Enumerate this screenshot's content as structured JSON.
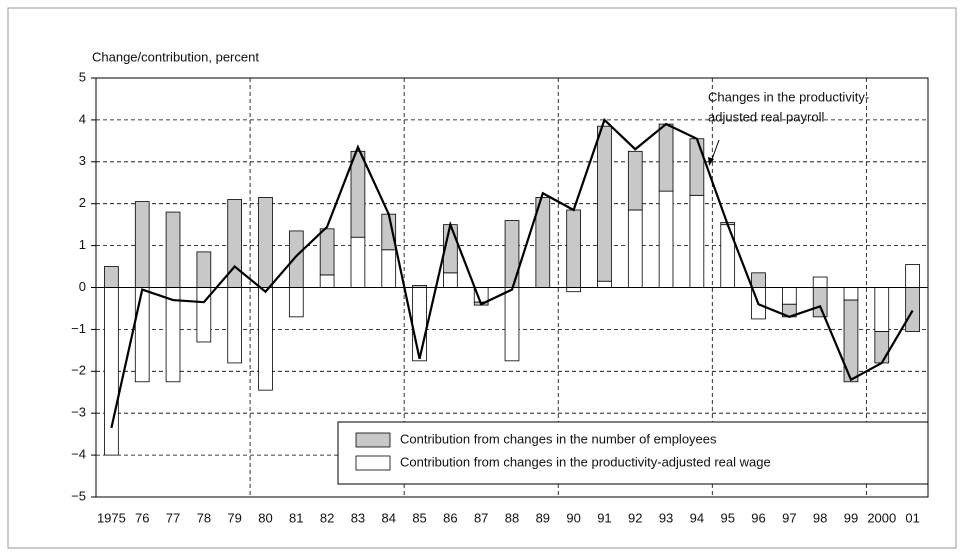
{
  "chart_data": {
    "type": "bar",
    "y_axis_label": "Change/contribution, percent",
    "categories": [
      "1975",
      "76",
      "77",
      "78",
      "79",
      "80",
      "81",
      "82",
      "83",
      "84",
      "85",
      "86",
      "87",
      "88",
      "89",
      "90",
      "91",
      "92",
      "93",
      "94",
      "95",
      "96",
      "97",
      "98",
      "99",
      "2000",
      "01"
    ],
    "series": [
      {
        "name": "Contribution from changes in the productivity-adjusted real wage",
        "color": "#ffffff",
        "values": [
          -4.0,
          -2.25,
          -2.25,
          -1.3,
          -1.8,
          -2.45,
          -0.7,
          0.3,
          1.2,
          0.9,
          -1.75,
          0.35,
          -0.35,
          -1.75,
          0.0,
          -0.1,
          0.15,
          1.85,
          2.3,
          2.2,
          1.5,
          -0.75,
          -0.4,
          0.25,
          -0.3,
          -1.05,
          0.55
        ]
      },
      {
        "name": "Contribution from changes in the number of employees",
        "color": "#c8c8c8",
        "values": [
          0.5,
          2.05,
          1.8,
          0.85,
          2.1,
          2.15,
          1.35,
          1.1,
          2.05,
          0.85,
          0.05,
          1.15,
          -0.07,
          1.6,
          2.15,
          1.85,
          3.7,
          1.4,
          1.6,
          1.35,
          0.05,
          0.35,
          -0.3,
          -0.7,
          -1.95,
          -0.75,
          -1.05
        ]
      }
    ],
    "line": {
      "color": "#000000",
      "values": [
        -3.35,
        -0.05,
        -0.3,
        -0.35,
        0.5,
        -0.1,
        0.75,
        1.45,
        3.35,
        1.75,
        -1.7,
        1.5,
        -0.4,
        -0.05,
        2.25,
        1.85,
        4.0,
        3.3,
        3.9,
        3.55,
        1.5,
        -0.4,
        -0.7,
        -0.45,
        -2.2,
        -1.8,
        -0.55
      ]
    },
    "annotation": [
      "Changes in the productivity-",
      "adjusted real payroll"
    ],
    "ylim": [
      -5,
      5
    ],
    "yticks": [
      {
        "value": -5,
        "label": "−5"
      },
      {
        "value": -4,
        "label": "−4"
      },
      {
        "value": -3,
        "label": "−3"
      },
      {
        "value": -2,
        "label": "−2"
      },
      {
        "value": -1,
        "label": "−1"
      },
      0,
      1,
      2,
      3,
      4,
      5
    ],
    "grid": true
  }
}
